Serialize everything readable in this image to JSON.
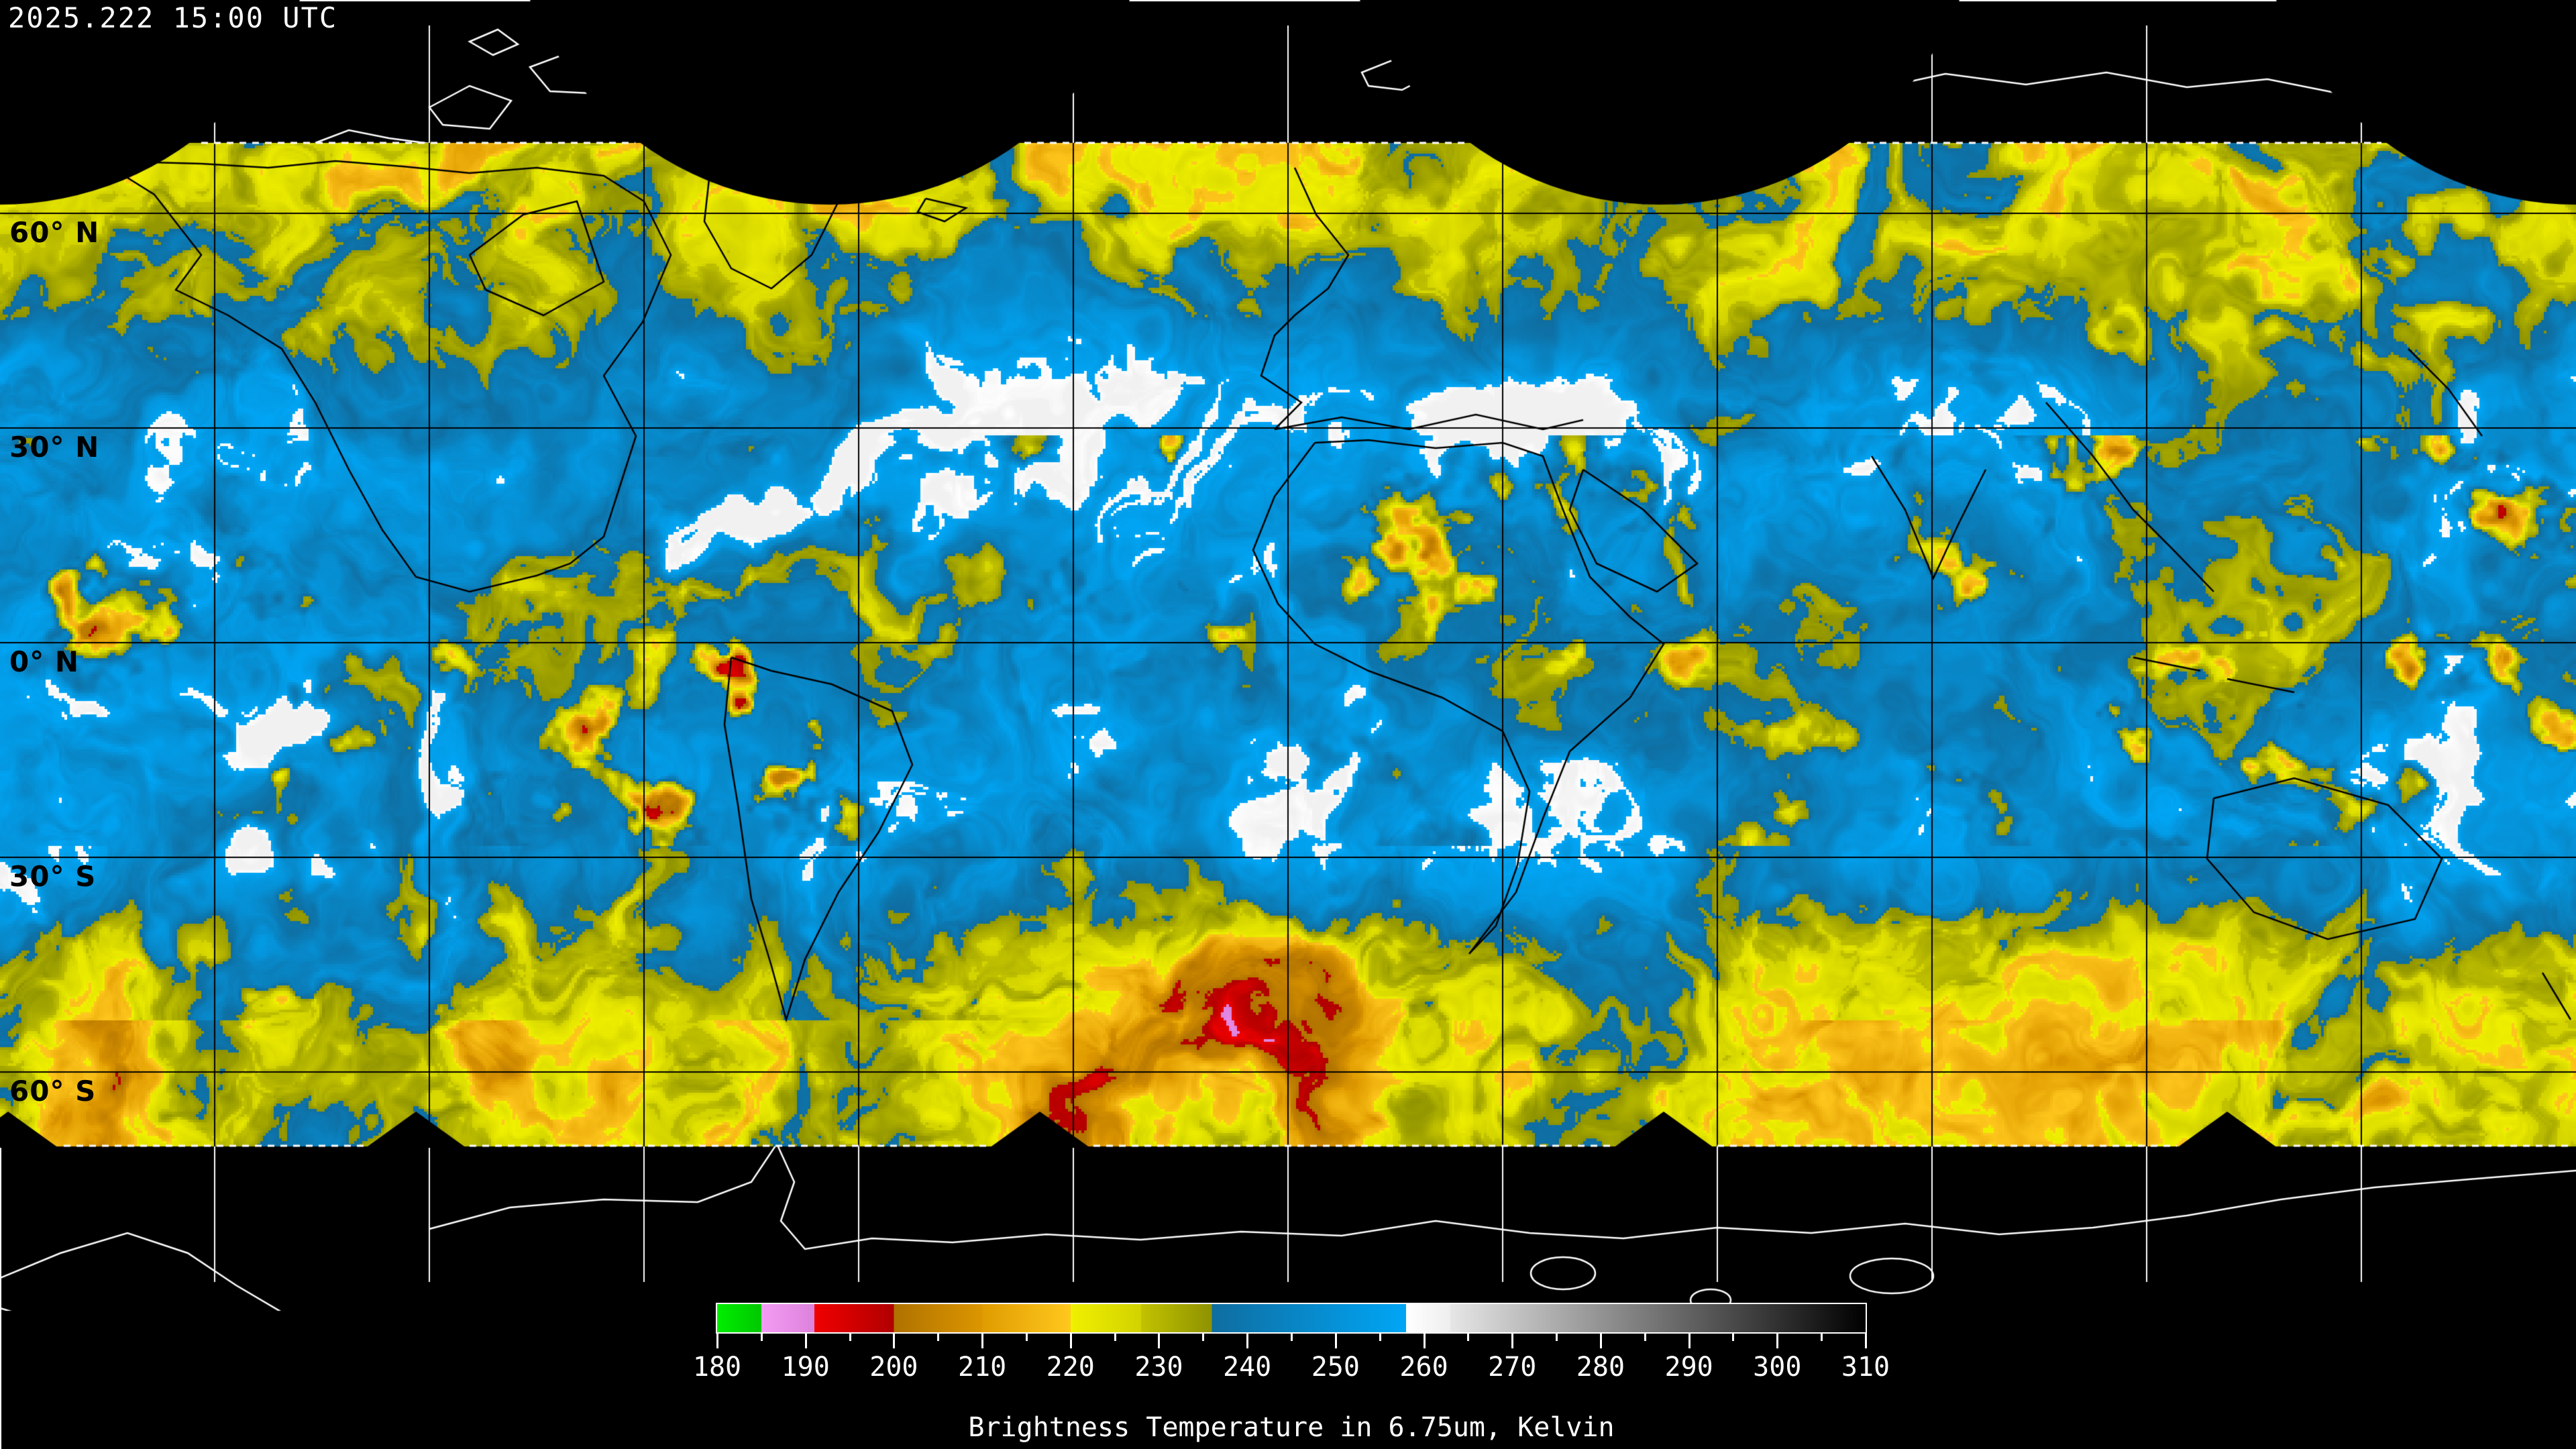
{
  "timestamp": "2025.222 15:00 UTC",
  "latitude_labels": [
    {
      "text": "60° N"
    },
    {
      "text": "30° N"
    },
    {
      "text": "0° N"
    },
    {
      "text": "30° S"
    },
    {
      "text": "60° S"
    }
  ],
  "grid": {
    "meridian_spacing_deg": 30,
    "parallel_spacing_deg": 30
  },
  "colorbar": {
    "title": "Brightness Temperature in 6.75um, Kelvin",
    "min": 180,
    "max": 310,
    "major_ticks": [
      180,
      190,
      200,
      210,
      220,
      230,
      240,
      250,
      260,
      270,
      280,
      290,
      300,
      310
    ],
    "minor_ticks": [
      185,
      195,
      205,
      215,
      225,
      235,
      245,
      255,
      265,
      275,
      285,
      295,
      305
    ],
    "tick_labels": [
      "180",
      "190",
      "200",
      "210",
      "220",
      "230",
      "240",
      "250",
      "260",
      "270",
      "280",
      "290",
      "300",
      "310"
    ],
    "palette_segments": [
      {
        "from": 180,
        "to": 185,
        "c1": "#00ee00",
        "c2": "#00c800"
      },
      {
        "from": 185,
        "to": 191,
        "c1": "#f49cf4",
        "c2": "#dc82dc"
      },
      {
        "from": 191,
        "to": 200,
        "c1": "#f00000",
        "c2": "#b00000"
      },
      {
        "from": 200,
        "to": 210,
        "c1": "#b07200",
        "c2": "#dc9600"
      },
      {
        "from": 210,
        "to": 220,
        "c1": "#e09c00",
        "c2": "#ffc81e"
      },
      {
        "from": 220,
        "to": 228,
        "c1": "#f0f000",
        "c2": "#d2d200"
      },
      {
        "from": 228,
        "to": 236,
        "c1": "#c2c200",
        "c2": "#8e9200"
      },
      {
        "from": 236,
        "to": 258,
        "c1": "#0f6da0",
        "c2": "#00a6f6"
      },
      {
        "from": 258,
        "to": 263,
        "c1": "#ffffff",
        "c2": "#eeeeee"
      },
      {
        "from": 263,
        "to": 310,
        "c1": "#e6e6e6",
        "c2": "#000000"
      }
    ]
  },
  "map_colors": {
    "background": "#000000",
    "gridline_on_data": "#000000",
    "gridline_on_sky": "#ffffff",
    "coastline_polar": "#ffffff",
    "coastline_on_data": "#000000",
    "moist_blue": "#0f8cc8",
    "dry_yellow": "#d2d200"
  }
}
